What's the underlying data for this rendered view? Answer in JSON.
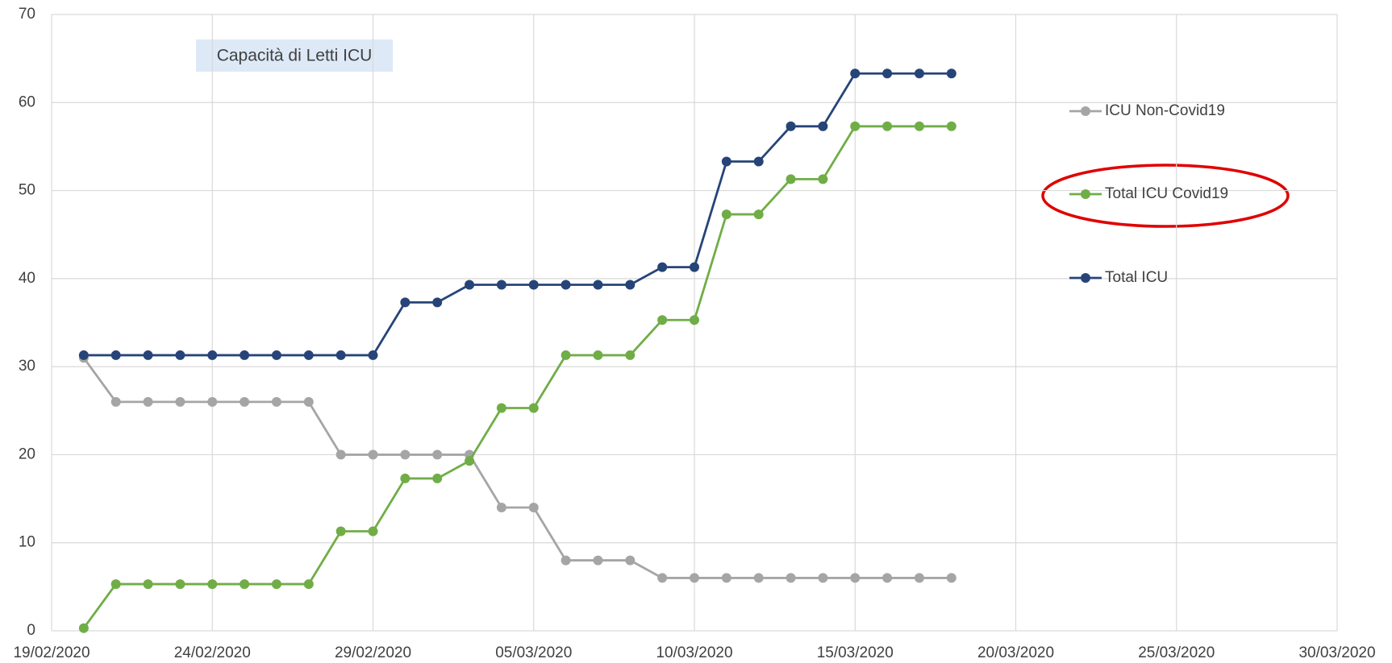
{
  "chart_data": {
    "type": "line",
    "title": "Capacità di Letti ICU",
    "x": [
      "20/02/2020",
      "21/02/2020",
      "22/02/2020",
      "23/02/2020",
      "24/02/2020",
      "25/02/2020",
      "26/02/2020",
      "27/02/2020",
      "28/02/2020",
      "29/02/2020",
      "01/03/2020",
      "02/03/2020",
      "03/03/2020",
      "04/03/2020",
      "05/03/2020",
      "06/03/2020",
      "07/03/2020",
      "08/03/2020",
      "09/03/2020",
      "10/03/2020",
      "11/03/2020",
      "12/03/2020",
      "13/03/2020",
      "14/03/2020",
      "15/03/2020",
      "16/03/2020",
      "17/03/2020",
      "18/03/2020"
    ],
    "series": [
      {
        "name": "ICU Non-Covid19",
        "color": "#a5a5a5",
        "values": [
          31,
          26,
          26,
          26,
          26,
          26,
          26,
          26,
          20,
          20,
          20,
          20,
          20,
          14,
          14,
          8,
          8,
          8,
          6,
          6,
          6,
          6,
          6,
          6,
          6,
          6,
          6,
          6
        ]
      },
      {
        "name": "Total ICU Covid19",
        "color": "#70ad47",
        "values": [
          0.3,
          5.3,
          5.3,
          5.3,
          5.3,
          5.3,
          5.3,
          5.3,
          11.3,
          11.3,
          17.3,
          17.3,
          19.3,
          25.3,
          25.3,
          31.3,
          31.3,
          31.3,
          35.3,
          35.3,
          47.3,
          47.3,
          51.3,
          51.3,
          57.3,
          57.3,
          57.3,
          57.3
        ]
      },
      {
        "name": "Total ICU",
        "color": "#264478",
        "values": [
          31.3,
          31.3,
          31.3,
          31.3,
          31.3,
          31.3,
          31.3,
          31.3,
          31.3,
          31.3,
          37.3,
          37.3,
          39.3,
          39.3,
          39.3,
          39.3,
          39.3,
          39.3,
          41.3,
          41.3,
          53.3,
          53.3,
          57.3,
          57.3,
          63.3,
          63.3,
          63.3,
          63.3
        ]
      }
    ],
    "xlim": [
      "19/02/2020",
      "30/03/2020"
    ],
    "xticks": [
      "19/02/2020",
      "24/02/2020",
      "29/02/2020",
      "05/03/2020",
      "10/03/2020",
      "15/03/2020",
      "20/03/2020",
      "25/03/2020",
      "30/03/2020"
    ],
    "ylim": [
      0,
      70
    ],
    "yticks": [
      0,
      10,
      20,
      30,
      40,
      50,
      60,
      70
    ],
    "grid": true
  }
}
